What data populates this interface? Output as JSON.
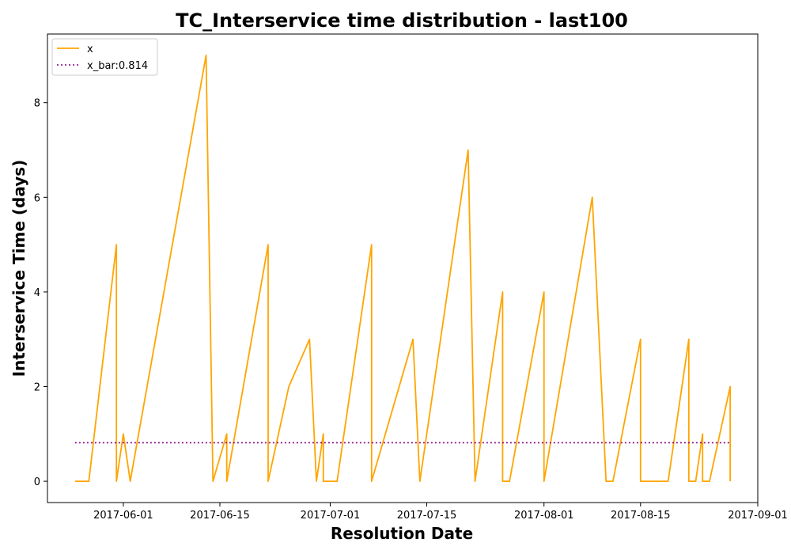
{
  "chart_data": {
    "type": "line",
    "title": "TC_Interservice time distribution - last100",
    "xlabel": "Resolution Date",
    "ylabel": "Interservice Time (days)",
    "x_type": "date",
    "xlim": [
      "2017-05-21",
      "2017-09-01"
    ],
    "ylim": [
      -0.45,
      9.45
    ],
    "x_ticks": [
      "2017-06-01",
      "2017-06-15",
      "2017-07-01",
      "2017-07-15",
      "2017-08-01",
      "2017-08-15",
      "2017-09-01"
    ],
    "y_ticks": [
      0,
      2,
      4,
      6,
      8
    ],
    "grid": false,
    "legend_position": "upper-left",
    "series": [
      {
        "name": "x",
        "color": "#FFA500",
        "style": "solid",
        "x": [
          "2017-05-25",
          "2017-05-27",
          "2017-05-31",
          "2017-05-31",
          "2017-06-01",
          "2017-06-02",
          "2017-06-13",
          "2017-06-14",
          "2017-06-16",
          "2017-06-16",
          "2017-06-22",
          "2017-06-22",
          "2017-06-25",
          "2017-06-28",
          "2017-06-29",
          "2017-06-30",
          "2017-06-30",
          "2017-07-02",
          "2017-07-07",
          "2017-07-07",
          "2017-07-13",
          "2017-07-14",
          "2017-07-21",
          "2017-07-22",
          "2017-07-26",
          "2017-07-26",
          "2017-07-27",
          "2017-08-01",
          "2017-08-01",
          "2017-08-08",
          "2017-08-10",
          "2017-08-11",
          "2017-08-15",
          "2017-08-15",
          "2017-08-19",
          "2017-08-22",
          "2017-08-22",
          "2017-08-23",
          "2017-08-24",
          "2017-08-24",
          "2017-08-25",
          "2017-08-28",
          "2017-08-28"
        ],
        "values": [
          0,
          0,
          5,
          0,
          1,
          0,
          9,
          0,
          1,
          0,
          5,
          0,
          2,
          3,
          0,
          1,
          0,
          0,
          5,
          0,
          3,
          0,
          7,
          0,
          4,
          0,
          0,
          4,
          0,
          6,
          0,
          0,
          3,
          0,
          0,
          3,
          0,
          0,
          1,
          0,
          0,
          2,
          0
        ]
      },
      {
        "name": "x_bar:0.814",
        "color": "#800080",
        "style": "dotted",
        "x": [
          "2017-05-25",
          "2017-08-28"
        ],
        "values": [
          0.814,
          0.814
        ]
      }
    ]
  }
}
